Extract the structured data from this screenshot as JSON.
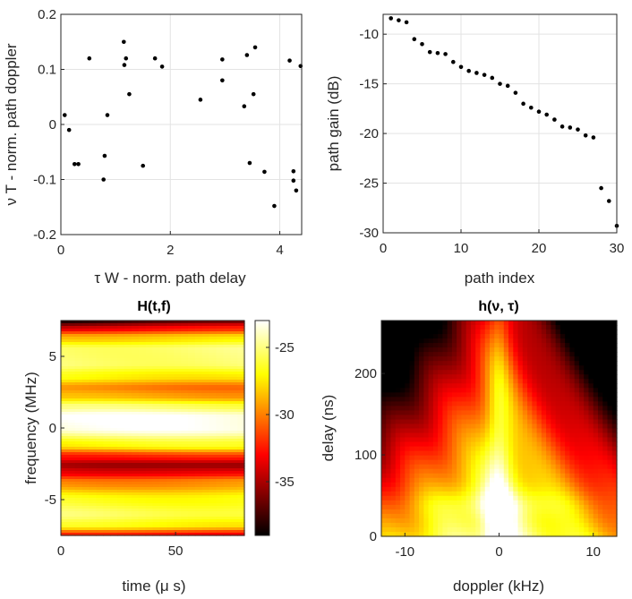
{
  "chart_data": [
    {
      "type": "scatter",
      "title": "",
      "xlabel": "τ W - norm. path delay",
      "ylabel": "ν T - norm. path doppler",
      "xlim": [
        0,
        4.4
      ],
      "ylim": [
        -0.2,
        0.2
      ],
      "xticks": [
        0,
        2,
        4
      ],
      "yticks": [
        -0.2,
        -0.1,
        0,
        0.1,
        0.2
      ],
      "xtick_labels": [
        "0",
        "2",
        "4"
      ],
      "ytick_labels": [
        "-0.2",
        "-0.1",
        "0",
        "0.1",
        "0.2"
      ],
      "grid": true,
      "points": [
        [
          0.07,
          0.017
        ],
        [
          0.15,
          -0.01
        ],
        [
          0.25,
          -0.072
        ],
        [
          0.32,
          -0.072
        ],
        [
          0.52,
          0.12
        ],
        [
          0.78,
          -0.1
        ],
        [
          0.8,
          -0.057
        ],
        [
          0.85,
          0.017
        ],
        [
          1.15,
          0.15
        ],
        [
          1.16,
          0.108
        ],
        [
          1.19,
          0.12
        ],
        [
          1.25,
          0.055
        ],
        [
          1.5,
          -0.075
        ],
        [
          1.72,
          0.12
        ],
        [
          1.85,
          0.105
        ],
        [
          2.55,
          0.045
        ],
        [
          2.95,
          0.118
        ],
        [
          2.95,
          0.08
        ],
        [
          3.35,
          0.033
        ],
        [
          3.4,
          0.126
        ],
        [
          3.45,
          -0.07
        ],
        [
          3.52,
          0.055
        ],
        [
          3.55,
          0.14
        ],
        [
          3.72,
          -0.086
        ],
        [
          3.9,
          -0.148
        ],
        [
          4.18,
          0.116
        ],
        [
          4.25,
          -0.085
        ],
        [
          4.25,
          -0.102
        ],
        [
          4.3,
          -0.12
        ],
        [
          4.38,
          0.106
        ]
      ]
    },
    {
      "type": "scatter",
      "title": "",
      "xlabel": "path index",
      "ylabel": "path gain (dB)",
      "xlim": [
        0,
        30
      ],
      "ylim": [
        -30,
        -8
      ],
      "xticks": [
        0,
        10,
        20,
        30
      ],
      "yticks": [
        -30,
        -25,
        -20,
        -15,
        -10
      ],
      "xtick_labels": [
        "0",
        "10",
        "20",
        "30"
      ],
      "ytick_labels": [
        "-30",
        "-25",
        "-20",
        "-15",
        "-10"
      ],
      "grid": true,
      "x": [
        1,
        2,
        3,
        4,
        5,
        6,
        7,
        8,
        9,
        10,
        11,
        12,
        13,
        14,
        15,
        16,
        17,
        18,
        19,
        20,
        21,
        22,
        23,
        24,
        25,
        26,
        27,
        28,
        29,
        30
      ],
      "y": [
        -8.4,
        -8.6,
        -8.8,
        -10.5,
        -11.0,
        -11.8,
        -11.9,
        -12.0,
        -12.8,
        -13.3,
        -13.7,
        -13.9,
        -14.1,
        -14.4,
        -15.0,
        -15.2,
        -15.9,
        -17.0,
        -17.4,
        -17.8,
        -18.1,
        -18.6,
        -19.3,
        -19.4,
        -19.6,
        -20.2,
        -20.4,
        -25.5,
        -26.8,
        -29.3
      ]
    },
    {
      "type": "heatmap",
      "title": "H(t,f)",
      "xlabel": "time (μ s)",
      "ylabel": "frequency (MHz)",
      "xlim": [
        0,
        80
      ],
      "ylim": [
        -7.5,
        7.5
      ],
      "xticks": [
        0,
        50
      ],
      "yticks": [
        -5,
        0,
        5
      ],
      "xtick_labels": [
        "0",
        "50"
      ],
      "ytick_labels": [
        "-5",
        "0",
        "5"
      ],
      "colorscale": "hot",
      "clim": [
        -39,
        -23
      ],
      "colorbar_ticks": [
        -35,
        -30,
        -25
      ],
      "colorbar_tick_labels": [
        "-35",
        "-30",
        "-25"
      ],
      "freq_profile": [
        [
          -7.5,
          -33
        ],
        [
          -6.8,
          -27
        ],
        [
          -6.0,
          -25.5
        ],
        [
          -5.0,
          -26.5
        ],
        [
          -3.8,
          -29.5
        ],
        [
          -3.1,
          -33
        ],
        [
          -2.6,
          -34.5
        ],
        [
          -2.0,
          -32
        ],
        [
          -1.2,
          -27
        ],
        [
          0.0,
          -23.5
        ],
        [
          0.8,
          -23.3
        ],
        [
          1.5,
          -25.5
        ],
        [
          2.2,
          -29
        ],
        [
          2.8,
          -30
        ],
        [
          3.6,
          -27
        ],
        [
          4.5,
          -25
        ],
        [
          5.5,
          -25
        ],
        [
          6.3,
          -28
        ],
        [
          7.0,
          -33
        ],
        [
          7.5,
          -37
        ]
      ]
    },
    {
      "type": "heatmap",
      "title": "h(ν, τ)",
      "xlabel": "doppler (kHz)",
      "ylabel": "delay (ns)",
      "xlim": [
        -12.5,
        12.5
      ],
      "ylim": [
        0,
        265
      ],
      "xticks": [
        -10,
        0,
        10
      ],
      "yticks": [
        0,
        100,
        200
      ],
      "xtick_labels": [
        "-10",
        "0",
        "10"
      ],
      "ytick_labels": [
        "0",
        "100",
        "200"
      ],
      "colorscale": "hot"
    }
  ]
}
